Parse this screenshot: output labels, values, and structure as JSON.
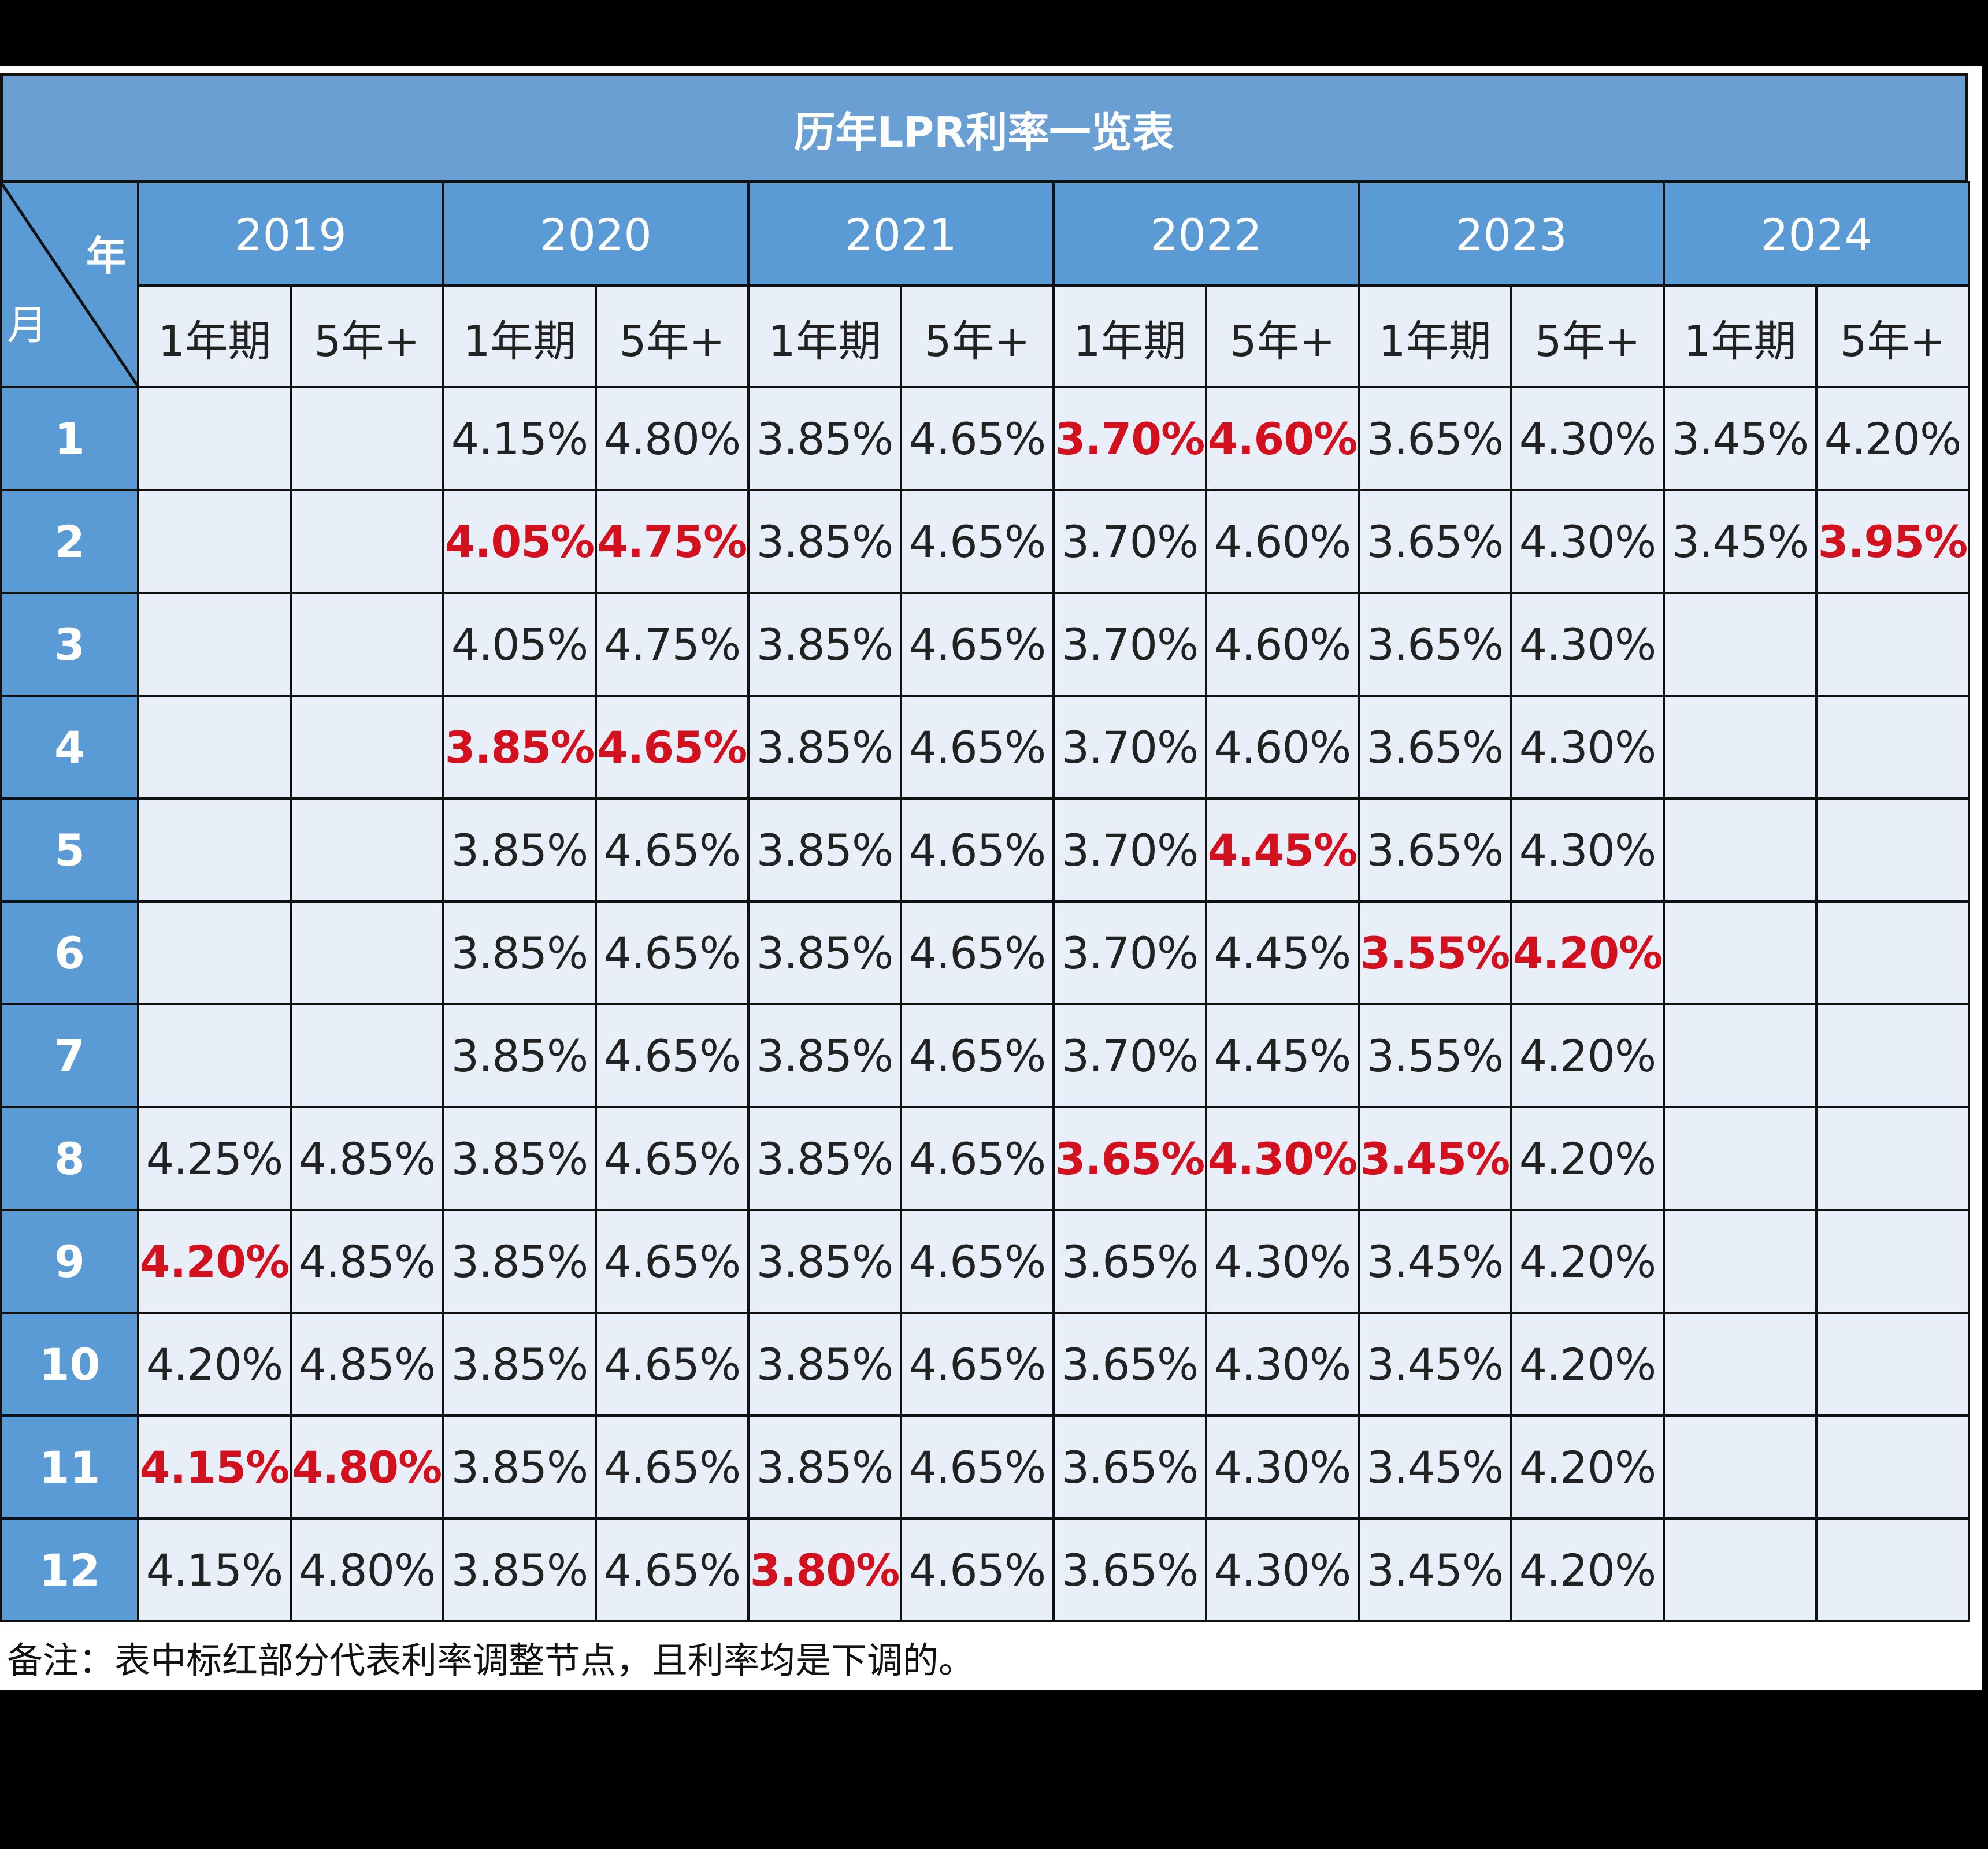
{
  "header": {
    "title": "历年LPR利率一览表",
    "corner_year": "年",
    "corner_month": "月"
  },
  "years": [
    {
      "year": "2019",
      "terms": [
        "1年期",
        "5年+"
      ]
    },
    {
      "year": "2020",
      "terms": [
        "1年期",
        "5年+"
      ]
    },
    {
      "year": "2021",
      "terms": [
        "1年期",
        "5年+"
      ]
    },
    {
      "year": "2022",
      "terms": [
        "1年期",
        "5年+"
      ]
    },
    {
      "year": "2023",
      "terms": [
        "1年期",
        "5年+"
      ]
    },
    {
      "year": "2024",
      "terms": [
        "1年期",
        "5年+"
      ]
    }
  ],
  "highlight_color": "#d3101e",
  "rows": [
    {
      "month": "1",
      "cells": [
        null,
        null,
        "4.15%",
        "4.80%",
        "3.85%",
        "4.65%",
        {
          "text": "3.70%",
          "highlight": true
        },
        {
          "text": "4.60%",
          "highlight": true
        },
        "3.65%",
        "4.30%",
        "3.45%",
        "4.20%"
      ]
    },
    {
      "month": "2",
      "cells": [
        null,
        null,
        {
          "text": "4.05%",
          "highlight": true
        },
        {
          "text": "4.75%",
          "highlight": true
        },
        "3.85%",
        "4.65%",
        "3.70%",
        "4.60%",
        "3.65%",
        "4.30%",
        "3.45%",
        {
          "text": "3.95%",
          "highlight": true
        }
      ]
    },
    {
      "month": "3",
      "cells": [
        null,
        null,
        "4.05%",
        "4.75%",
        "3.85%",
        "4.65%",
        "3.70%",
        "4.60%",
        "3.65%",
        "4.30%",
        null,
        null
      ]
    },
    {
      "month": "4",
      "cells": [
        null,
        null,
        {
          "text": "3.85%",
          "highlight": true
        },
        {
          "text": "4.65%",
          "highlight": true
        },
        "3.85%",
        "4.65%",
        "3.70%",
        "4.60%",
        "3.65%",
        "4.30%",
        null,
        null
      ]
    },
    {
      "month": "5",
      "cells": [
        null,
        null,
        "3.85%",
        "4.65%",
        "3.85%",
        "4.65%",
        "3.70%",
        {
          "text": "4.45%",
          "highlight": true
        },
        "3.65%",
        "4.30%",
        null,
        null
      ]
    },
    {
      "month": "6",
      "cells": [
        null,
        null,
        "3.85%",
        "4.65%",
        "3.85%",
        "4.65%",
        "3.70%",
        "4.45%",
        {
          "text": "3.55%",
          "highlight": true
        },
        {
          "text": "4.20%",
          "highlight": true
        },
        null,
        null
      ]
    },
    {
      "month": "7",
      "cells": [
        null,
        null,
        "3.85%",
        "4.65%",
        "3.85%",
        "4.65%",
        "3.70%",
        "4.45%",
        "3.55%",
        "4.20%",
        null,
        null
      ]
    },
    {
      "month": "8",
      "cells": [
        "4.25%",
        "4.85%",
        "3.85%",
        "4.65%",
        "3.85%",
        "4.65%",
        {
          "text": "3.65%",
          "highlight": true
        },
        {
          "text": "4.30%",
          "highlight": true
        },
        {
          "text": "3.45%",
          "highlight": true
        },
        "4.20%",
        null,
        null
      ]
    },
    {
      "month": "9",
      "cells": [
        {
          "text": "4.20%",
          "highlight": true
        },
        "4.85%",
        "3.85%",
        "4.65%",
        "3.85%",
        "4.65%",
        "3.65%",
        "4.30%",
        "3.45%",
        "4.20%",
        null,
        null
      ]
    },
    {
      "month": "10",
      "cells": [
        "4.20%",
        "4.85%",
        "3.85%",
        "4.65%",
        "3.85%",
        "4.65%",
        "3.65%",
        "4.30%",
        "3.45%",
        "4.20%",
        null,
        null
      ]
    },
    {
      "month": "11",
      "cells": [
        {
          "text": "4.15%",
          "highlight": true
        },
        {
          "text": "4.80%",
          "highlight": true
        },
        "3.85%",
        "4.65%",
        "3.85%",
        "4.65%",
        "3.65%",
        "4.30%",
        "3.45%",
        "4.20%",
        null,
        null
      ]
    },
    {
      "month": "12",
      "cells": [
        "4.15%",
        "4.80%",
        "3.85%",
        "4.65%",
        {
          "text": "3.80%",
          "highlight": true
        },
        "4.65%",
        "3.65%",
        "4.30%",
        "3.45%",
        "4.20%",
        null,
        null
      ]
    }
  ],
  "note": "备注：表中标红部分代表利率调整节点，且利率均是下调的。"
}
